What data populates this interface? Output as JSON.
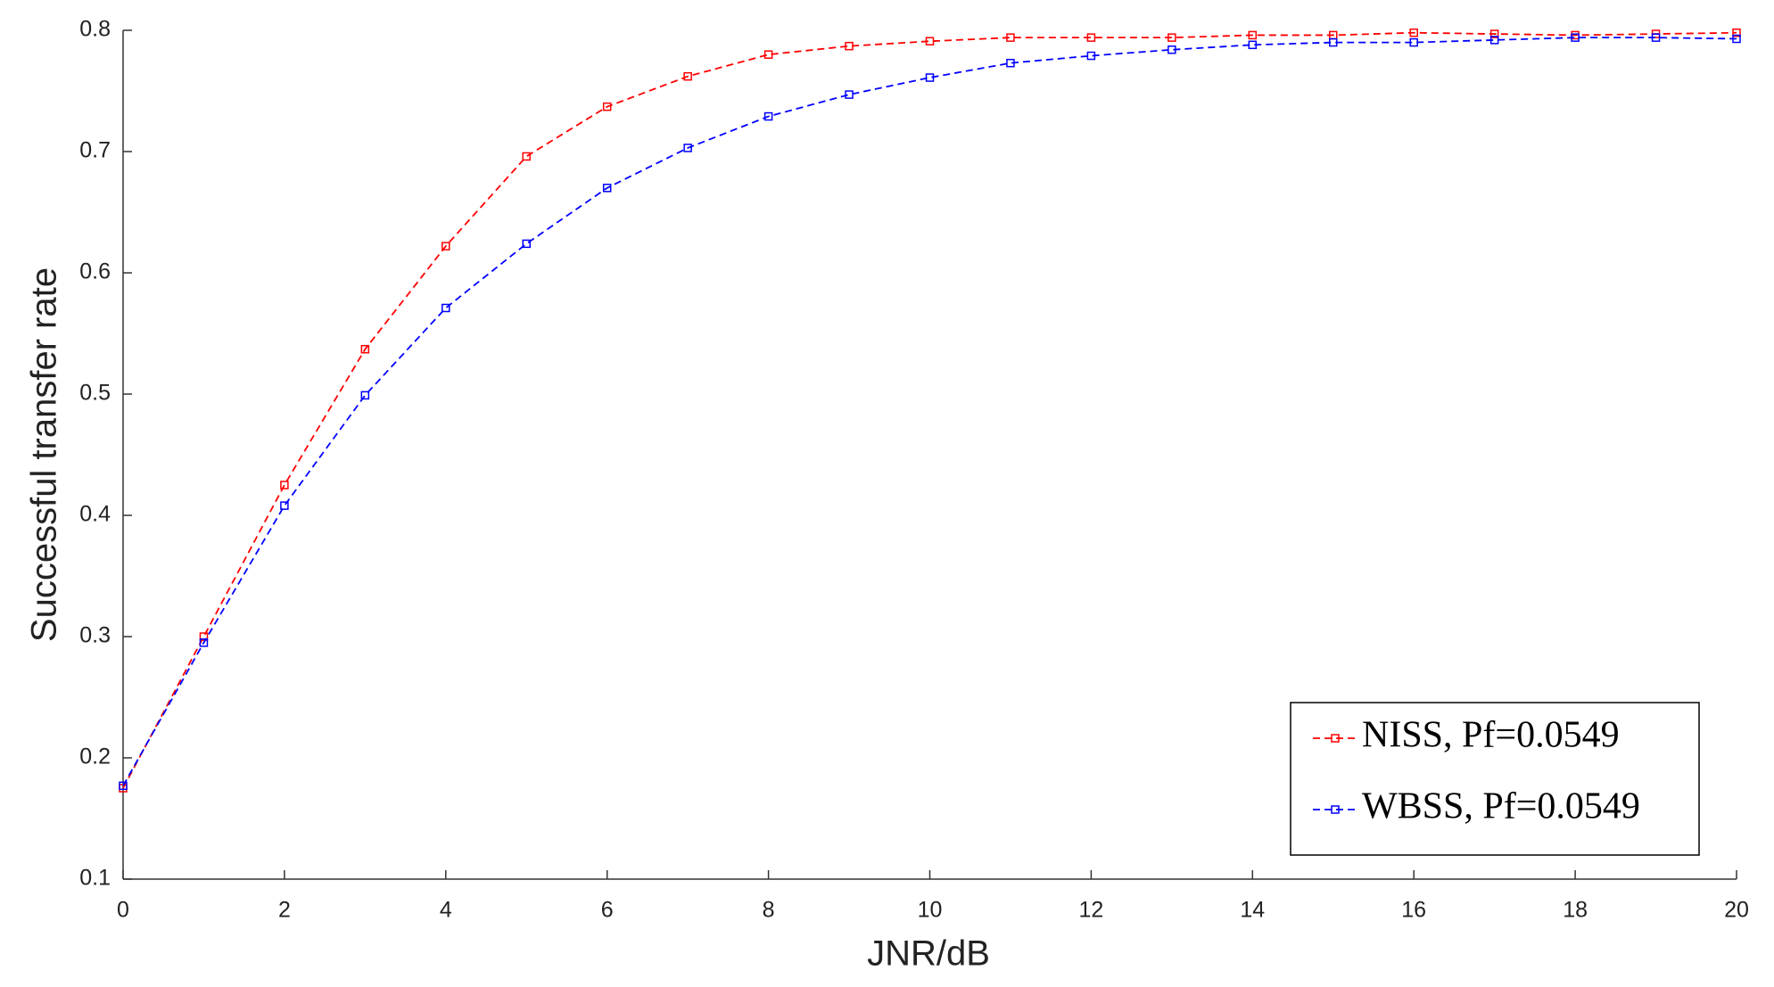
{
  "chart_data": {
    "type": "line",
    "x_label": "JNR/dB",
    "y_label": "Successful transfer rate",
    "x": [
      0,
      1,
      2,
      3,
      4,
      5,
      6,
      7,
      8,
      9,
      10,
      11,
      12,
      13,
      14,
      15,
      16,
      17,
      18,
      19,
      20
    ],
    "series": [
      {
        "name": "NISS, Pf=0.0549",
        "color": "#ff0000",
        "values": [
          0.175,
          0.3,
          0.425,
          0.537,
          0.622,
          0.696,
          0.737,
          0.762,
          0.78,
          0.787,
          0.791,
          0.794,
          0.794,
          0.794,
          0.796,
          0.796,
          0.798,
          0.797,
          0.796,
          0.797,
          0.798
        ]
      },
      {
        "name": "WBSS, Pf=0.0549",
        "color": "#0000ff",
        "values": [
          0.177,
          0.295,
          0.408,
          0.499,
          0.571,
          0.624,
          0.67,
          0.703,
          0.729,
          0.747,
          0.761,
          0.773,
          0.779,
          0.784,
          0.788,
          0.79,
          0.79,
          0.792,
          0.794,
          0.794,
          0.793
        ]
      }
    ],
    "xlim": [
      0,
      20
    ],
    "xticks": [
      0,
      2,
      4,
      6,
      8,
      10,
      12,
      14,
      16,
      18,
      20
    ],
    "ylim": [
      0.1,
      0.8
    ],
    "yticks": [
      0.1,
      0.2,
      0.3,
      0.4,
      0.5,
      0.6,
      0.7,
      0.8
    ],
    "grid": false,
    "legend_position": "lower right"
  }
}
